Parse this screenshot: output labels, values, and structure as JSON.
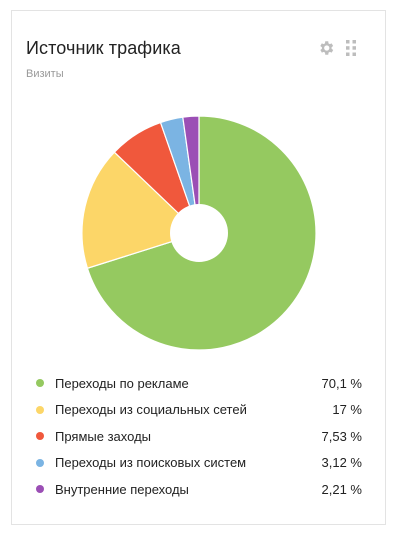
{
  "widget": {
    "title": "Источник трафика",
    "subtitle": "Визиты",
    "icons": [
      "gear-icon",
      "drag-handle-icon"
    ]
  },
  "chart_data": {
    "type": "pie",
    "donut": true,
    "series": [
      {
        "name": "Переходы по рекламе",
        "value": 70.1,
        "label": "70,1 %",
        "color": "#95c960"
      },
      {
        "name": "Переходы из социальных сетей",
        "value": 17,
        "label": "17 %",
        "color": "#fcd668"
      },
      {
        "name": "Прямые заходы",
        "value": 7.53,
        "label": "7,53 %",
        "color": "#f0583c"
      },
      {
        "name": "Переходы из поисковых систем",
        "value": 3.12,
        "label": "3,12 %",
        "color": "#7bb4e3"
      },
      {
        "name": "Внутренние переходы",
        "value": 2.21,
        "label": "2,21 %",
        "color": "#9b4fb5"
      }
    ]
  }
}
